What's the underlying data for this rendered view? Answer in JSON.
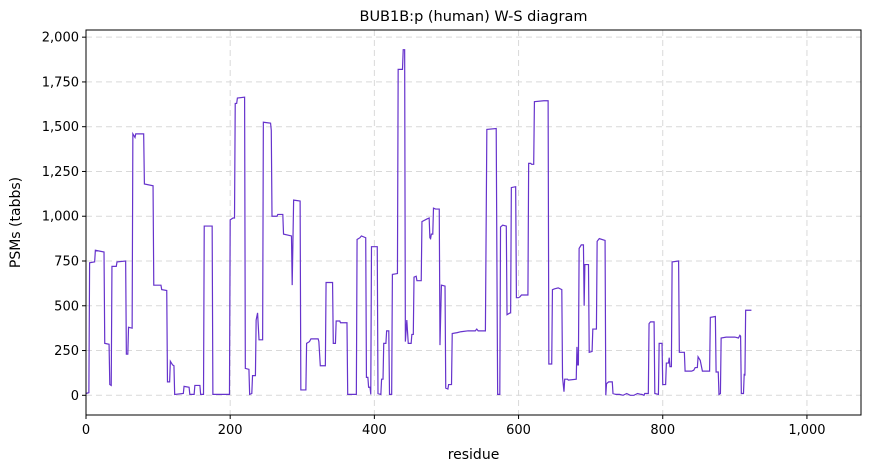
{
  "chart_data": {
    "type": "line",
    "title": "BUB1B:p (human) W-S diagram",
    "xlabel": "residue",
    "ylabel": "PSMs (tabbs)",
    "xlim": [
      0,
      1075
    ],
    "ylim": [
      -110,
      2040
    ],
    "grid": true,
    "line_color": "#6633cc",
    "x_ticks": [
      0,
      200,
      400,
      600,
      800,
      1000
    ],
    "x_tick_labels": [
      "0",
      "200",
      "400",
      "600",
      "800",
      "1,000"
    ],
    "y_ticks": [
      0,
      250,
      500,
      750,
      1000,
      1250,
      1500,
      1750,
      2000
    ],
    "y_tick_labels": [
      "0",
      "250",
      "500",
      "750",
      "1,000",
      "1,250",
      "1,500",
      "1,750",
      "2,000"
    ],
    "series": [
      {
        "points": [
          [
            0,
            10
          ],
          [
            4,
            15
          ],
          [
            5,
            740
          ],
          [
            12,
            745
          ],
          [
            13,
            810
          ],
          [
            25,
            800
          ],
          [
            26,
            290
          ],
          [
            32,
            285
          ],
          [
            33,
            60
          ],
          [
            35,
            55
          ],
          [
            36,
            720
          ],
          [
            42,
            720
          ],
          [
            43,
            745
          ],
          [
            55,
            750
          ],
          [
            56,
            230
          ],
          [
            58,
            230
          ],
          [
            59,
            380
          ],
          [
            64,
            375
          ],
          [
            65,
            1460
          ],
          [
            68,
            1440
          ],
          [
            69,
            1460
          ],
          [
            80,
            1460
          ],
          [
            81,
            1180
          ],
          [
            93,
            1170
          ],
          [
            94,
            615
          ],
          [
            104,
            615
          ],
          [
            105,
            590
          ],
          [
            112,
            585
          ],
          [
            113,
            75
          ],
          [
            116,
            75
          ],
          [
            117,
            190
          ],
          [
            120,
            170
          ],
          [
            122,
            165
          ],
          [
            123,
            5
          ],
          [
            135,
            10
          ],
          [
            136,
            50
          ],
          [
            143,
            45
          ],
          [
            144,
            5
          ],
          [
            150,
            5
          ],
          [
            151,
            55
          ],
          [
            158,
            55
          ],
          [
            159,
            5
          ],
          [
            163,
            5
          ],
          [
            164,
            945
          ],
          [
            175,
            945
          ],
          [
            176,
            5
          ],
          [
            199,
            5
          ],
          [
            200,
            980
          ],
          [
            204,
            990
          ],
          [
            206,
            990
          ],
          [
            207,
            1630
          ],
          [
            209,
            1630
          ],
          [
            210,
            1660
          ],
          [
            220,
            1665
          ],
          [
            221,
            150
          ],
          [
            226,
            145
          ],
          [
            227,
            5
          ],
          [
            230,
            10
          ],
          [
            231,
            110
          ],
          [
            235,
            110
          ],
          [
            236,
            420
          ],
          [
            238,
            460
          ],
          [
            240,
            310
          ],
          [
            245,
            310
          ],
          [
            246,
            1525
          ],
          [
            256,
            1520
          ],
          [
            257,
            1480
          ],
          [
            258,
            1000
          ],
          [
            265,
            1000
          ],
          [
            266,
            1010
          ],
          [
            273,
            1010
          ],
          [
            274,
            900
          ],
          [
            285,
            890
          ],
          [
            286,
            615
          ],
          [
            288,
            1090
          ],
          [
            297,
            1085
          ],
          [
            298,
            30
          ],
          [
            305,
            30
          ],
          [
            306,
            290
          ],
          [
            310,
            300
          ],
          [
            312,
            315
          ],
          [
            322,
            315
          ],
          [
            323,
            300
          ],
          [
            325,
            165
          ],
          [
            332,
            165
          ],
          [
            333,
            630
          ],
          [
            342,
            630
          ],
          [
            343,
            290
          ],
          [
            346,
            290
          ],
          [
            347,
            415
          ],
          [
            352,
            415
          ],
          [
            353,
            405
          ],
          [
            362,
            405
          ],
          [
            363,
            5
          ],
          [
            375,
            5
          ],
          [
            376,
            870
          ],
          [
            380,
            880
          ],
          [
            382,
            890
          ],
          [
            388,
            880
          ],
          [
            389,
            100
          ],
          [
            391,
            100
          ],
          [
            392,
            45
          ],
          [
            394,
            45
          ],
          [
            395,
            5
          ],
          [
            396,
            830
          ],
          [
            404,
            830
          ],
          [
            405,
            10
          ],
          [
            409,
            5
          ],
          [
            410,
            90
          ],
          [
            412,
            90
          ],
          [
            413,
            290
          ],
          [
            416,
            290
          ],
          [
            417,
            360
          ],
          [
            420,
            360
          ],
          [
            421,
            5
          ],
          [
            424,
            5
          ],
          [
            425,
            675
          ],
          [
            432,
            680
          ],
          [
            433,
            1820
          ],
          [
            439,
            1820
          ],
          [
            440,
            1930
          ],
          [
            442,
            1930
          ],
          [
            443,
            300
          ],
          [
            445,
            420
          ],
          [
            447,
            290
          ],
          [
            451,
            290
          ],
          [
            452,
            340
          ],
          [
            454,
            340
          ],
          [
            455,
            660
          ],
          [
            458,
            665
          ],
          [
            459,
            640
          ],
          [
            465,
            640
          ],
          [
            466,
            970
          ],
          [
            473,
            985
          ],
          [
            476,
            990
          ],
          [
            477,
            880
          ],
          [
            478,
            875
          ],
          [
            479,
            900
          ],
          [
            481,
            900
          ],
          [
            482,
            1045
          ],
          [
            485,
            1040
          ],
          [
            490,
            1040
          ],
          [
            491,
            280
          ],
          [
            493,
            615
          ],
          [
            498,
            610
          ],
          [
            499,
            40
          ],
          [
            502,
            35
          ],
          [
            503,
            60
          ],
          [
            507,
            60
          ],
          [
            508,
            345
          ],
          [
            515,
            350
          ],
          [
            520,
            355
          ],
          [
            530,
            360
          ],
          [
            540,
            360
          ],
          [
            542,
            370
          ],
          [
            544,
            360
          ],
          [
            554,
            360
          ],
          [
            556,
            1485
          ],
          [
            569,
            1490
          ],
          [
            570,
            720
          ],
          [
            571,
            5
          ],
          [
            574,
            5
          ],
          [
            575,
            940
          ],
          [
            578,
            950
          ],
          [
            583,
            945
          ],
          [
            584,
            450
          ],
          [
            588,
            460
          ],
          [
            589,
            460
          ],
          [
            590,
            1160
          ],
          [
            596,
            1165
          ],
          [
            597,
            545
          ],
          [
            600,
            545
          ],
          [
            602,
            550
          ],
          [
            604,
            560
          ],
          [
            606,
            560
          ],
          [
            613,
            560
          ],
          [
            614,
            1295
          ],
          [
            617,
            1295
          ],
          [
            618,
            1290
          ],
          [
            621,
            1290
          ],
          [
            622,
            1640
          ],
          [
            635,
            1645
          ],
          [
            636,
            1645
          ],
          [
            641,
            1645
          ],
          [
            642,
            175
          ],
          [
            646,
            175
          ],
          [
            647,
            590
          ],
          [
            650,
            595
          ],
          [
            655,
            600
          ],
          [
            660,
            590
          ],
          [
            661,
            100
          ],
          [
            663,
            20
          ],
          [
            664,
            90
          ],
          [
            668,
            90
          ],
          [
            669,
            85
          ],
          [
            680,
            90
          ],
          [
            681,
            270
          ],
          [
            682,
            170
          ],
          [
            683,
            170
          ],
          [
            684,
            820
          ],
          [
            687,
            840
          ],
          [
            690,
            840
          ],
          [
            691,
            500
          ],
          [
            692,
            730
          ],
          [
            697,
            730
          ],
          [
            698,
            240
          ],
          [
            702,
            245
          ],
          [
            703,
            370
          ],
          [
            708,
            370
          ],
          [
            709,
            860
          ],
          [
            712,
            875
          ],
          [
            720,
            865
          ],
          [
            721,
            0
          ],
          [
            722,
            65
          ],
          [
            725,
            75
          ],
          [
            730,
            75
          ],
          [
            731,
            10
          ],
          [
            735,
            5
          ],
          [
            740,
            5
          ],
          [
            745,
            0
          ],
          [
            750,
            10
          ],
          [
            755,
            0
          ],
          [
            760,
            0
          ],
          [
            765,
            10
          ],
          [
            770,
            5
          ],
          [
            771,
            5
          ],
          [
            774,
            0
          ],
          [
            775,
            10
          ],
          [
            780,
            10
          ],
          [
            781,
            400
          ],
          [
            783,
            410
          ],
          [
            788,
            410
          ],
          [
            789,
            10
          ],
          [
            794,
            5
          ],
          [
            795,
            290
          ],
          [
            799,
            290
          ],
          [
            800,
            60
          ],
          [
            804,
            60
          ],
          [
            805,
            180
          ],
          [
            808,
            180
          ],
          [
            809,
            210
          ],
          [
            810,
            160
          ],
          [
            812,
            160
          ],
          [
            813,
            745
          ],
          [
            822,
            750
          ],
          [
            823,
            240
          ],
          [
            830,
            240
          ],
          [
            831,
            135
          ],
          [
            840,
            135
          ],
          [
            843,
            140
          ],
          [
            845,
            155
          ],
          [
            848,
            155
          ],
          [
            849,
            215
          ],
          [
            852,
            195
          ],
          [
            855,
            135
          ],
          [
            865,
            135
          ],
          [
            866,
            435
          ],
          [
            873,
            440
          ],
          [
            874,
            130
          ],
          [
            877,
            130
          ],
          [
            878,
            5
          ],
          [
            880,
            10
          ],
          [
            881,
            320
          ],
          [
            888,
            325
          ],
          [
            900,
            325
          ],
          [
            905,
            320
          ],
          [
            907,
            335
          ],
          [
            908,
            330
          ],
          [
            909,
            10
          ],
          [
            912,
            10
          ],
          [
            913,
            120
          ],
          [
            914,
            110
          ],
          [
            915,
            475
          ],
          [
            923,
            475
          ]
        ]
      }
    ]
  }
}
